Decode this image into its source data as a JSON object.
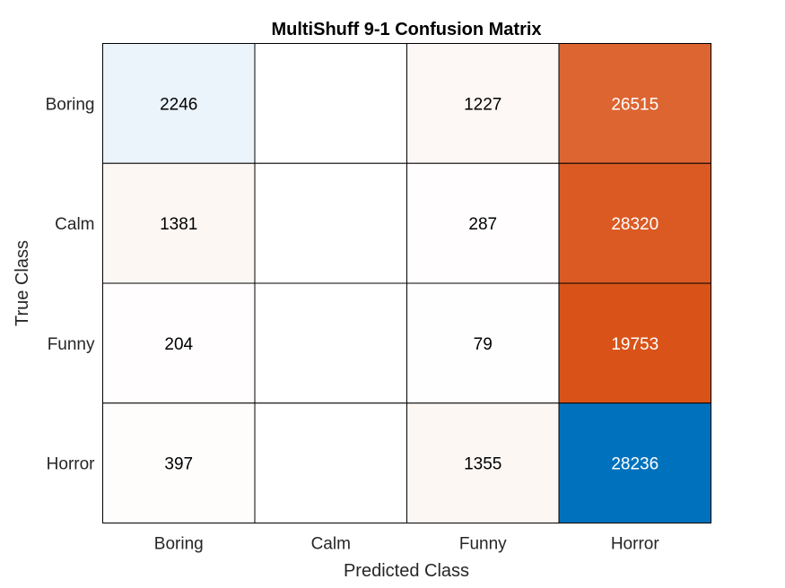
{
  "chart_data": {
    "type": "heatmap",
    "title": "MultiShuff 9-1 Confusion Matrix",
    "xlabel": "Predicted Class",
    "ylabel": "True Class",
    "x_categories": [
      "Boring",
      "Calm",
      "Funny",
      "Horror"
    ],
    "y_categories": [
      "Boring",
      "Calm",
      "Funny",
      "Horror"
    ],
    "values": [
      [
        2246,
        0,
        1227,
        26515
      ],
      [
        1381,
        0,
        287,
        28320
      ],
      [
        204,
        0,
        79,
        19753
      ],
      [
        397,
        0,
        1355,
        28236
      ]
    ],
    "diagonal_color": "#0072BD",
    "off_diagonal_color": "#D95319",
    "cell_text_dark": "#000000",
    "cell_text_light": "#FFFFFF",
    "grid_color": "#000000"
  }
}
